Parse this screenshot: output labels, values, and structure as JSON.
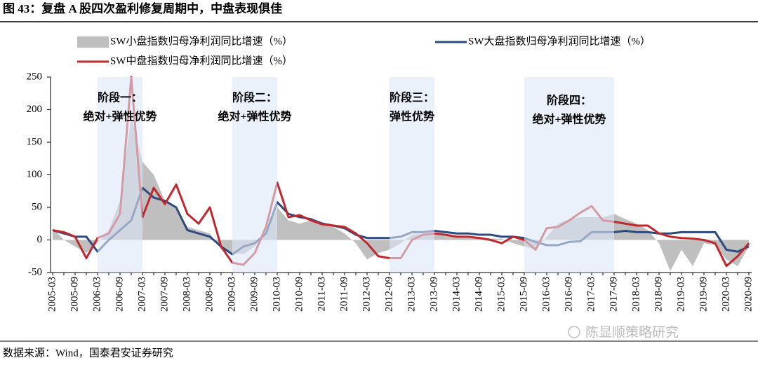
{
  "header": {
    "title": "图 43：复盘 A 股四次盈利修复周期中，中盘表现俱佳"
  },
  "chart_data": {
    "type": "line",
    "categories": [
      "2005-03",
      null,
      "2005-09",
      null,
      "2006-03",
      null,
      "2006-09",
      null,
      "2007-03",
      null,
      "2007-09",
      null,
      "2008-03",
      null,
      "2008-09",
      null,
      "2009-03",
      null,
      "2009-09",
      null,
      "2010-03",
      null,
      "2010-09",
      null,
      "2011-03",
      null,
      "2011-09",
      null,
      "2012-03",
      null,
      "2012-09",
      null,
      "2013-03",
      null,
      "2013-09",
      null,
      "2014-03",
      null,
      "2014-09",
      null,
      "2015-03",
      null,
      "2015-09",
      null,
      "2016-03",
      null,
      "2016-09",
      null,
      "2017-03",
      null,
      "2017-09",
      null,
      "2018-03",
      null,
      "2018-09",
      null,
      "2019-03",
      null,
      "2019-09",
      null,
      "2020-03",
      null,
      "2020-09"
    ],
    "series": [
      {
        "name": "SW小盘指数归母净利润同比增速（%）",
        "kind": "area",
        "color": "#bfbfbf",
        "values": [
          18,
          0,
          -10,
          -20,
          -5,
          15,
          60,
          190,
          120,
          100,
          60,
          50,
          20,
          15,
          10,
          -15,
          -20,
          -22,
          -10,
          10,
          50,
          30,
          25,
          30,
          28,
          20,
          10,
          -5,
          -30,
          -20,
          -15,
          -5,
          8,
          10,
          8,
          8,
          5,
          3,
          5,
          2,
          2,
          -5,
          -10,
          -15,
          5,
          25,
          32,
          35,
          35,
          35,
          40,
          32,
          25,
          15,
          -5,
          -48,
          -15,
          -40,
          -5,
          -8,
          -30,
          -40,
          -10
        ]
      },
      {
        "name": "SW大盘指数归母净利润同比增速（%）",
        "kind": "line",
        "color": "#2b4a80",
        "values": [
          15,
          10,
          5,
          5,
          -18,
          0,
          15,
          30,
          80,
          65,
          60,
          50,
          15,
          10,
          5,
          -10,
          -22,
          -10,
          -5,
          10,
          58,
          40,
          35,
          32,
          25,
          22,
          18,
          8,
          3,
          3,
          3,
          5,
          12,
          12,
          14,
          12,
          10,
          10,
          8,
          8,
          5,
          5,
          3,
          -3,
          -8,
          -8,
          -3,
          -2,
          12,
          12,
          12,
          14,
          12,
          12,
          10,
          10,
          12,
          12,
          12,
          12,
          -15,
          -18,
          -10
        ]
      },
      {
        "name": "SW中盘指数归母净利润同比增速（%）",
        "kind": "line",
        "color": "#c0282d",
        "values": [
          15,
          12,
          5,
          -28,
          3,
          10,
          40,
          250,
          35,
          80,
          55,
          85,
          40,
          25,
          50,
          -10,
          -35,
          -38,
          -20,
          20,
          88,
          35,
          38,
          30,
          24,
          22,
          20,
          10,
          -5,
          -25,
          -28,
          -28,
          0,
          8,
          10,
          8,
          5,
          5,
          3,
          0,
          -5,
          5,
          0,
          -15,
          18,
          20,
          30,
          42,
          52,
          30,
          28,
          25,
          22,
          22,
          10,
          5,
          3,
          2,
          0,
          -5,
          -40,
          -25,
          -5
        ]
      }
    ],
    "ylim": [
      -50,
      250
    ],
    "yticks": [
      -50,
      0,
      50,
      100,
      150,
      200,
      250
    ],
    "periods": [
      {
        "lines": [
          "阶段一：",
          "绝对+弹性优势"
        ],
        "start": "2006-03",
        "end": "2007-03"
      },
      {
        "lines": [
          "阶段二：",
          "绝对+弹性优势"
        ],
        "start": "2009-03",
        "end": "2010-03"
      },
      {
        "lines": [
          "阶段三：",
          "弹性优势"
        ],
        "start": "2012-09",
        "end": "2013-09"
      },
      {
        "lines": [
          "阶段四：",
          "绝对+弹性优势"
        ],
        "start": "2015-09",
        "end": "2017-09"
      }
    ]
  },
  "watermark": "陈显顺策略研究",
  "footer": {
    "source": "数据来源：Wind，国泰君安证券研究"
  }
}
